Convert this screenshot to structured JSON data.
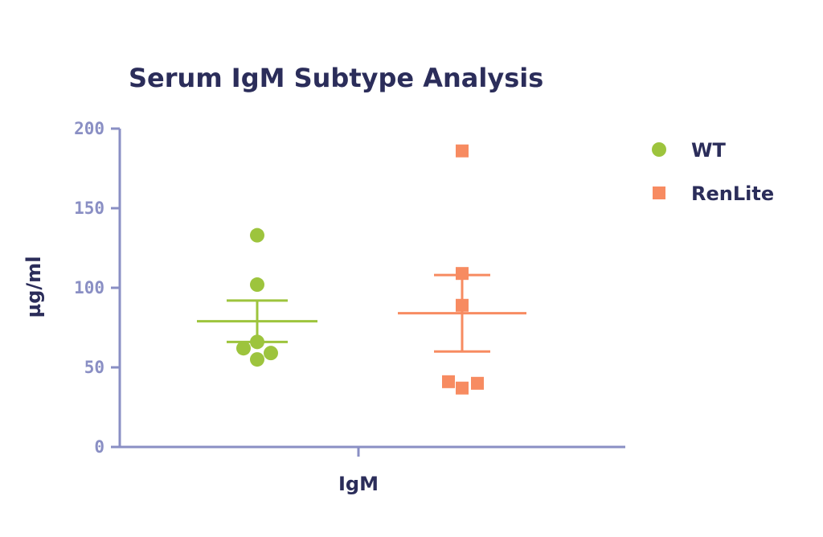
{
  "chart_data": {
    "type": "scatter",
    "title": "Serum IgM Subtype Analysis",
    "xlabel": "",
    "ylabel": "µg/ml",
    "categories": [
      "IgM"
    ],
    "ylim": [
      0,
      200
    ],
    "yticks": [
      "0",
      "50",
      "100",
      "150",
      "200"
    ],
    "grid": false,
    "legend_position": "top-right",
    "series": [
      {
        "name": "WT",
        "marker": "circle",
        "color": "#9dc43d",
        "values": [
          133,
          102,
          66,
          62,
          59,
          55
        ],
        "mean": 79,
        "sem": 13
      },
      {
        "name": "RenLite",
        "marker": "square",
        "color": "#f78b61",
        "values": [
          186,
          109,
          89,
          41,
          40,
          37
        ],
        "mean": 84,
        "sem": 24
      }
    ]
  }
}
